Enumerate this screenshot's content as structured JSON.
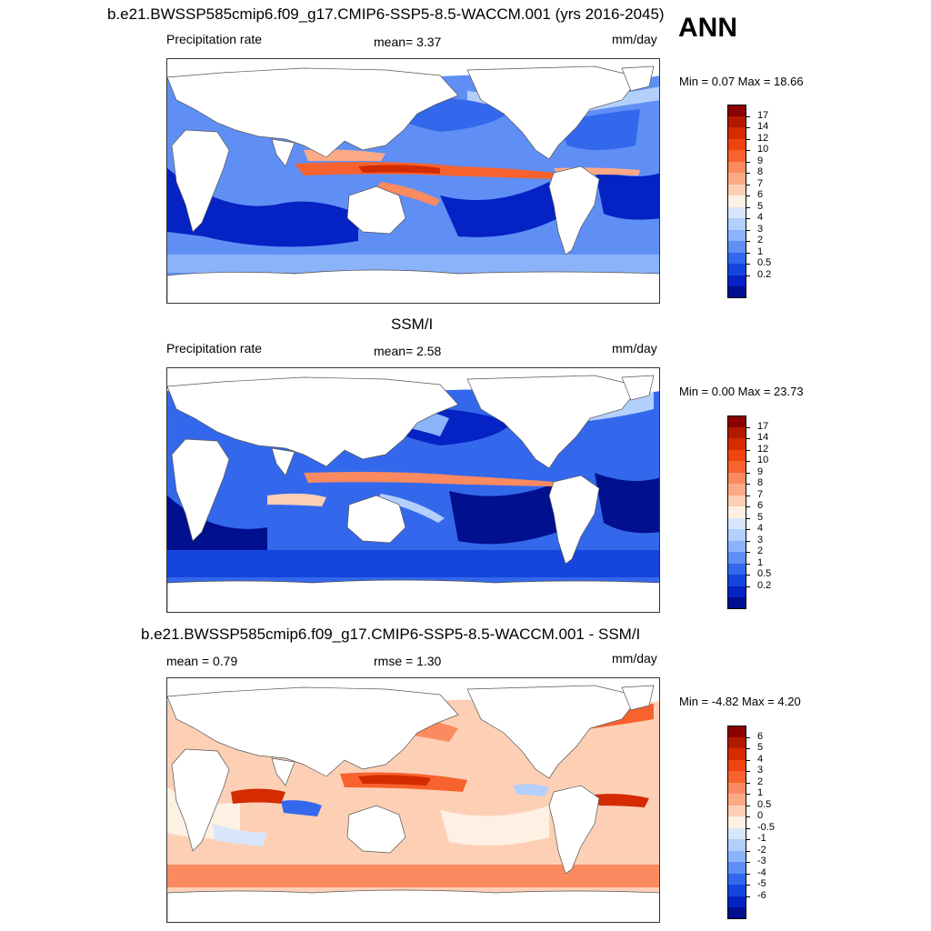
{
  "header": {
    "corner_label": "ANN"
  },
  "panels": [
    {
      "title": "b.e21.BWSSP585cmip6.f09_g17.CMIP6-SSP5-8.5-WACCM.001 (yrs 2016-2045)",
      "left_label": "Precipitation rate",
      "center_label": "mean=   3.37",
      "units": "mm/day",
      "minmax": "Min =   0.07 Max =  18.66",
      "colorbar": {
        "labels": [
          "17",
          "14",
          "12",
          "10",
          "9",
          "8",
          "7",
          "6",
          "5",
          "4",
          "3",
          "2",
          "1",
          "0.5",
          "0.2"
        ],
        "colors": [
          "#8b0000",
          "#b21a00",
          "#d42b00",
          "#ee4510",
          "#f7622e",
          "#fb8a60",
          "#fcaa86",
          "#fdd0b6",
          "#fef0e2",
          "#d7e6fc",
          "#b3cffb",
          "#8bb3f9",
          "#5f8ff5",
          "#3468ec",
          "#1644de",
          "#0522c4",
          "#00108f"
        ]
      }
    },
    {
      "title": "SSM/I",
      "left_label": "Precipitation rate",
      "center_label": "mean=   2.58",
      "units": "mm/day",
      "minmax": "Min =   0.00 Max =  23.73",
      "colorbar": {
        "labels": [
          "17",
          "14",
          "12",
          "10",
          "9",
          "8",
          "7",
          "6",
          "5",
          "4",
          "3",
          "2",
          "1",
          "0.5",
          "0.2"
        ],
        "colors": [
          "#8b0000",
          "#b21a00",
          "#d42b00",
          "#ee4510",
          "#f7622e",
          "#fb8a60",
          "#fcaa86",
          "#fdd0b6",
          "#fef0e2",
          "#d7e6fc",
          "#b3cffb",
          "#8bb3f9",
          "#5f8ff5",
          "#3468ec",
          "#1644de",
          "#0522c4",
          "#00108f"
        ]
      }
    },
    {
      "title": "b.e21.BWSSP585cmip6.f09_g17.CMIP6-SSP5-8.5-WACCM.001 - SSM/I",
      "left_label": "mean =   0.79",
      "center_label": "rmse =   1.30",
      "units": "mm/day",
      "minmax": "Min =  -4.82 Max =   4.20",
      "colorbar": {
        "labels": [
          "6",
          "5",
          "4",
          "3",
          "2",
          "1",
          "0.5",
          "0",
          "-0.5",
          "-1",
          "-2",
          "-3",
          "-4",
          "-5",
          "-6"
        ],
        "colors": [
          "#8b0000",
          "#b21a00",
          "#d42b00",
          "#ee4510",
          "#f7622e",
          "#fb8a60",
          "#fcaa86",
          "#fdd0b6",
          "#fef0e2",
          "#d7e6fc",
          "#b3cffb",
          "#8bb3f9",
          "#5f8ff5",
          "#3468ec",
          "#1644de",
          "#0522c4",
          "#00108f"
        ]
      }
    }
  ]
}
